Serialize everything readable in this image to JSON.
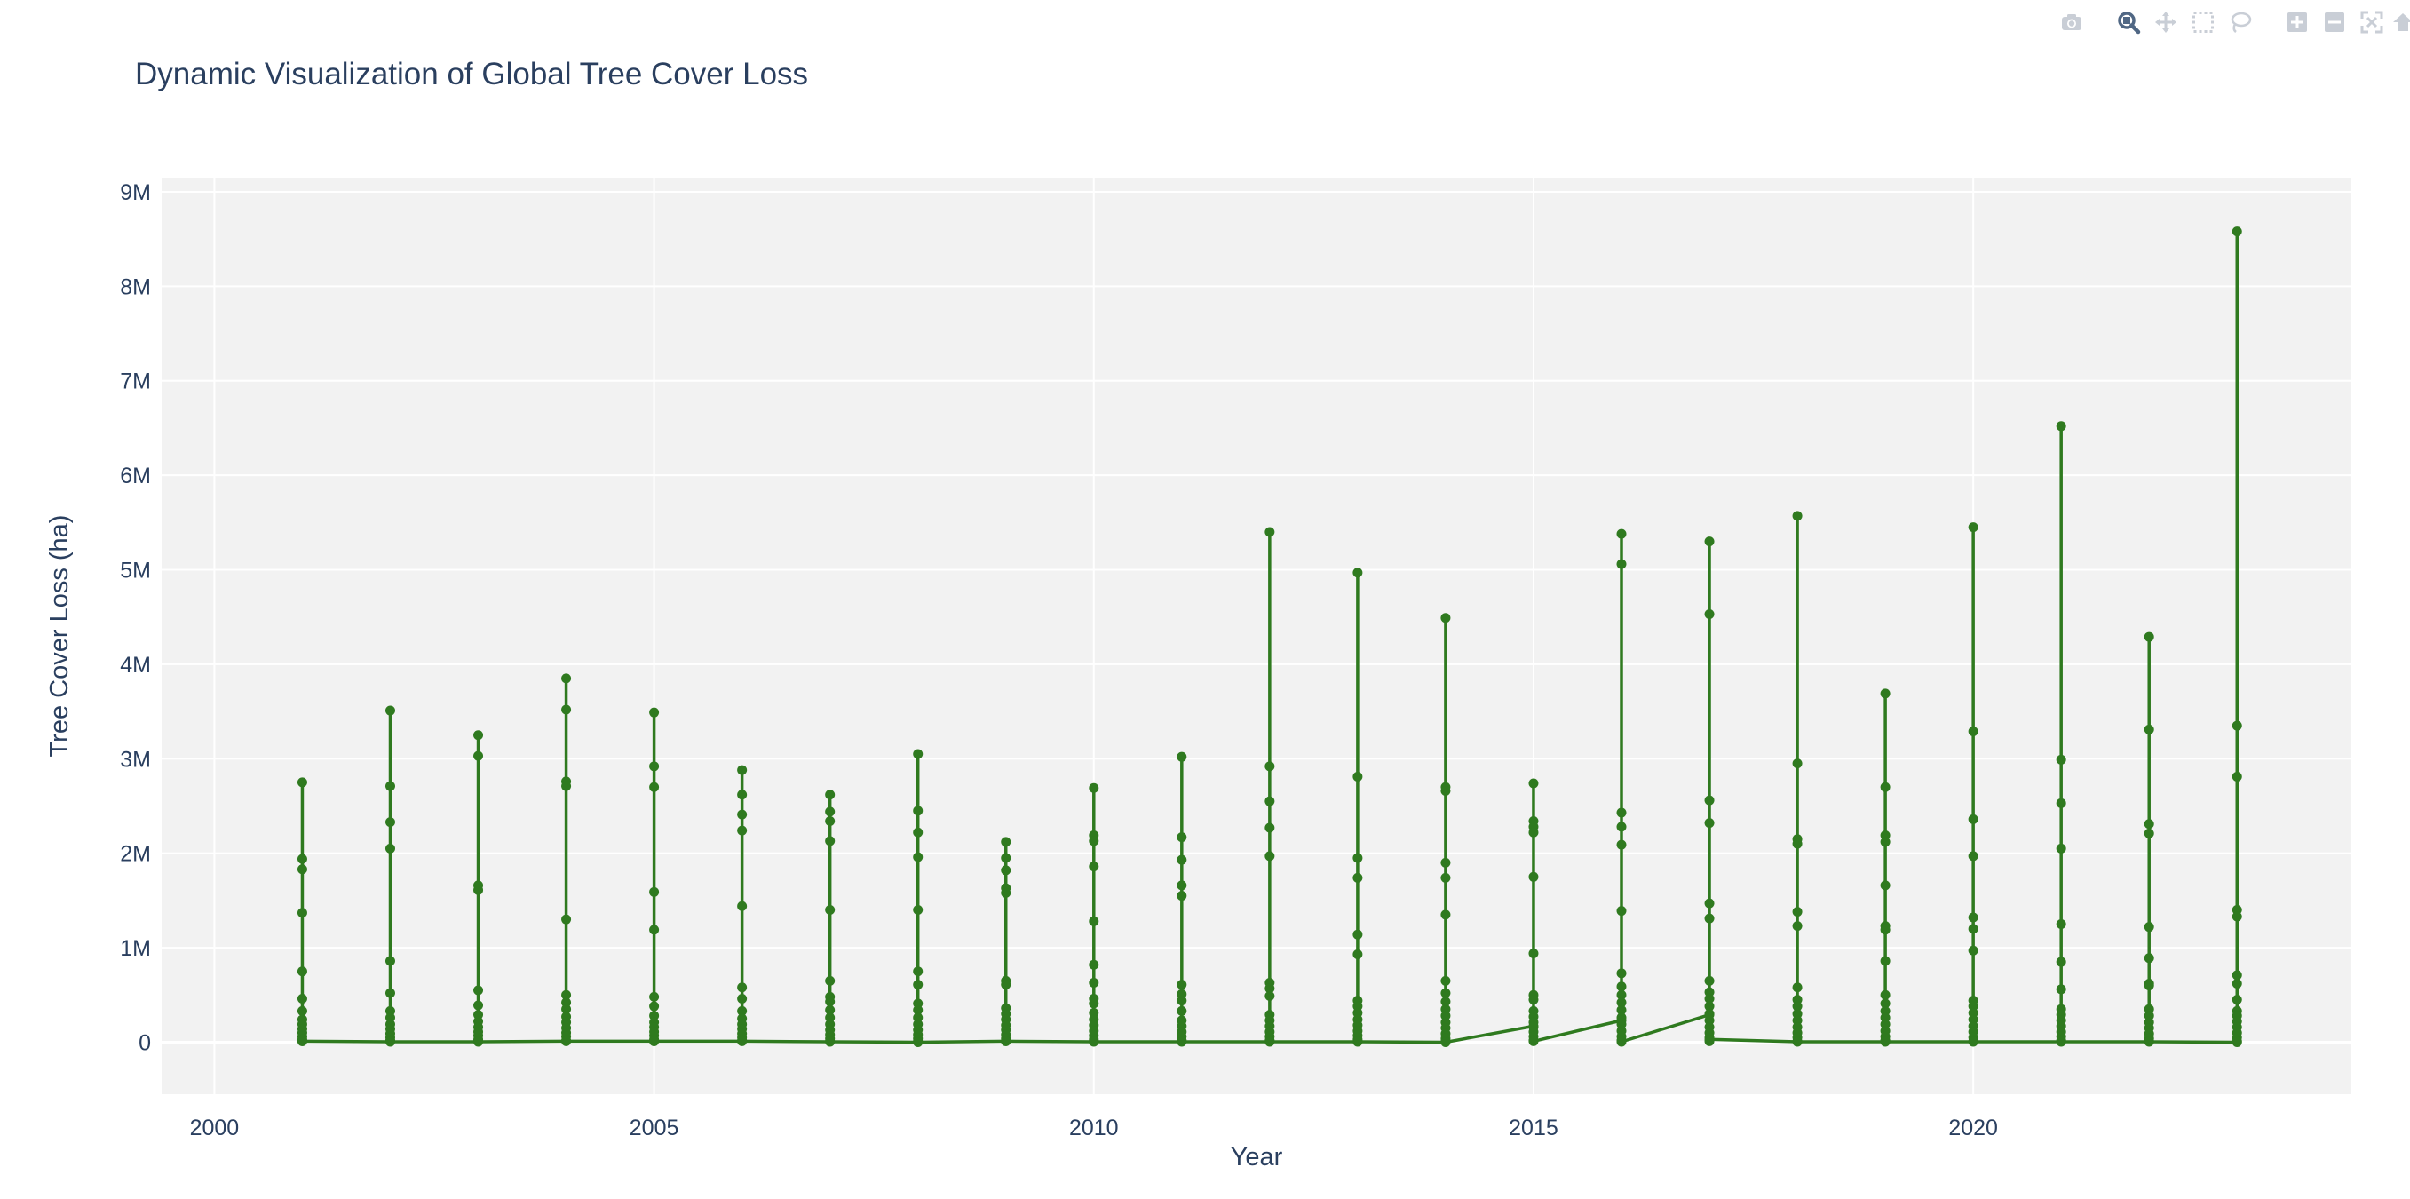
{
  "modebar": {
    "buttons": [
      "camera-icon",
      "zoom-icon",
      "pan-icon",
      "box-select-icon",
      "lasso-icon",
      "zoom-in-icon",
      "zoom-out-icon",
      "autoscale-icon",
      "reset-axes-icon"
    ]
  },
  "chart_data": {
    "type": "line",
    "title": "Dynamic Visualization of Global Tree Cover Loss",
    "xlabel": "Year",
    "ylabel": "Tree Cover Loss (ha)",
    "xlim": [
      1999.4,
      2024.3
    ],
    "ylim": [
      -550000,
      9150000
    ],
    "x_ticks": [
      2000,
      2005,
      2010,
      2015,
      2020
    ],
    "x_tick_labels": [
      "2000",
      "2005",
      "2010",
      "2015",
      "2020"
    ],
    "y_ticks": [
      0,
      1000000,
      2000000,
      3000000,
      4000000,
      5000000,
      6000000,
      7000000,
      8000000,
      9000000
    ],
    "y_tick_labels": [
      "0",
      "1M",
      "2M",
      "3M",
      "4M",
      "5M",
      "6M",
      "7M",
      "8M",
      "9M"
    ],
    "grid": true,
    "line_color": "#2f7a1f",
    "plot_bg": "#f2f2f2",
    "series_by_year": [
      {
        "year": 2001,
        "values": [
          2750000,
          1940000,
          1830000,
          1370000,
          750000,
          460000,
          330000,
          240000,
          190000,
          140000,
          100000,
          60000,
          30000,
          10000
        ]
      },
      {
        "year": 2002,
        "values": [
          3510000,
          2710000,
          2330000,
          2050000,
          860000,
          520000,
          330000,
          260000,
          190000,
          140000,
          90000,
          50000,
          20000,
          10000
        ]
      },
      {
        "year": 2003,
        "values": [
          3250000,
          3030000,
          1660000,
          1610000,
          550000,
          390000,
          290000,
          220000,
          160000,
          110000,
          70000,
          30000,
          10000
        ]
      },
      {
        "year": 2004,
        "values": [
          3850000,
          3520000,
          2760000,
          2710000,
          1300000,
          500000,
          420000,
          350000,
          270000,
          210000,
          150000,
          100000,
          60000,
          20000
        ]
      },
      {
        "year": 2005,
        "values": [
          3490000,
          2920000,
          2700000,
          1590000,
          1190000,
          480000,
          380000,
          280000,
          210000,
          160000,
          110000,
          70000,
          30000,
          10000
        ]
      },
      {
        "year": 2006,
        "values": [
          2880000,
          2620000,
          2410000,
          2240000,
          1440000,
          580000,
          460000,
          330000,
          250000,
          190000,
          140000,
          90000,
          50000,
          20000
        ]
      },
      {
        "year": 2007,
        "values": [
          2620000,
          2440000,
          2340000,
          2130000,
          1400000,
          650000,
          480000,
          430000,
          340000,
          260000,
          190000,
          130000,
          80000,
          40000,
          10000
        ]
      },
      {
        "year": 2008,
        "values": [
          3050000,
          2450000,
          2220000,
          1960000,
          1400000,
          750000,
          610000,
          410000,
          340000,
          260000,
          190000,
          130000,
          80000,
          40000,
          10000
        ]
      },
      {
        "year": 2009,
        "values": [
          2120000,
          1950000,
          1820000,
          1630000,
          1580000,
          650000,
          610000,
          360000,
          300000,
          240000,
          180000,
          130000,
          80000,
          40000,
          10000
        ]
      },
      {
        "year": 2010,
        "values": [
          2690000,
          2190000,
          2130000,
          1860000,
          1280000,
          820000,
          630000,
          460000,
          410000,
          310000,
          240000,
          180000,
          120000,
          70000,
          30000,
          10000
        ]
      },
      {
        "year": 2011,
        "values": [
          3020000,
          2170000,
          1930000,
          1660000,
          1550000,
          610000,
          510000,
          440000,
          330000,
          230000,
          170000,
          110000,
          60000,
          20000
        ]
      },
      {
        "year": 2012,
        "values": [
          5400000,
          2920000,
          2550000,
          2270000,
          1970000,
          630000,
          570000,
          490000,
          290000,
          230000,
          170000,
          110000,
          60000,
          20000
        ]
      },
      {
        "year": 2013,
        "values": [
          4970000,
          2810000,
          1950000,
          1740000,
          1140000,
          930000,
          440000,
          380000,
          310000,
          240000,
          180000,
          120000,
          70000,
          30000,
          10000
        ]
      },
      {
        "year": 2014,
        "values": [
          4490000,
          2700000,
          2660000,
          1900000,
          1740000,
          1350000,
          650000,
          520000,
          430000,
          350000,
          280000,
          210000,
          150000,
          90000,
          40000,
          10000
        ]
      },
      {
        "year": 2015,
        "values": [
          2740000,
          2340000,
          2280000,
          2220000,
          1750000,
          940000,
          500000,
          450000,
          330000,
          270000,
          210000,
          160000,
          110000,
          60000,
          20000
        ]
      },
      {
        "year": 2016,
        "values": [
          5380000,
          5060000,
          2430000,
          2280000,
          2090000,
          1390000,
          730000,
          590000,
          500000,
          420000,
          340000,
          260000,
          190000,
          120000,
          60000,
          20000
        ]
      },
      {
        "year": 2017,
        "values": [
          5300000,
          4530000,
          2560000,
          2320000,
          1470000,
          1310000,
          650000,
          530000,
          460000,
          380000,
          300000,
          230000,
          160000,
          100000,
          50000,
          10000
        ]
      },
      {
        "year": 2018,
        "values": [
          5570000,
          2950000,
          2150000,
          2100000,
          1380000,
          1230000,
          580000,
          450000,
          380000,
          300000,
          230000,
          160000,
          100000,
          50000,
          10000
        ]
      },
      {
        "year": 2019,
        "values": [
          3690000,
          2700000,
          2190000,
          2120000,
          1660000,
          1230000,
          1190000,
          860000,
          500000,
          410000,
          330000,
          260000,
          190000,
          120000,
          60000,
          20000
        ]
      },
      {
        "year": 2020,
        "values": [
          5450000,
          3290000,
          2360000,
          1970000,
          1320000,
          1200000,
          970000,
          440000,
          380000,
          310000,
          240000,
          170000,
          110000,
          50000,
          10000
        ]
      },
      {
        "year": 2021,
        "values": [
          6520000,
          2990000,
          2530000,
          2050000,
          1250000,
          850000,
          560000,
          350000,
          290000,
          230000,
          170000,
          110000,
          60000,
          20000
        ]
      },
      {
        "year": 2022,
        "values": [
          4290000,
          3310000,
          2310000,
          2210000,
          1220000,
          890000,
          620000,
          600000,
          350000,
          280000,
          210000,
          150000,
          90000,
          40000,
          10000
        ]
      },
      {
        "year": 2023,
        "values": [
          8580000,
          3350000,
          2810000,
          1400000,
          1330000,
          710000,
          620000,
          450000,
          330000,
          280000,
          220000,
          160000,
          100000,
          50000,
          10000
        ]
      }
    ],
    "connecting_points": [
      {
        "x": 2001,
        "y": 10000
      },
      {
        "x": 2002,
        "y": 5000
      },
      {
        "x": 2003,
        "y": 5000
      },
      {
        "x": 2004,
        "y": 10000
      },
      {
        "x": 2005,
        "y": 10000
      },
      {
        "x": 2006,
        "y": 10000
      },
      {
        "x": 2007,
        "y": 5000
      },
      {
        "x": 2008,
        "y": 0
      },
      {
        "x": 2009,
        "y": 10000
      },
      {
        "x": 2010,
        "y": 5000
      },
      {
        "x": 2011,
        "y": 5000
      },
      {
        "x": 2012,
        "y": 5000
      },
      {
        "x": 2013,
        "y": 5000
      },
      {
        "x": 2014,
        "y": 0
      },
      {
        "x": 2015,
        "y": 170000
      },
      {
        "x": 2015,
        "y": 10000
      },
      {
        "x": 2016,
        "y": 230000
      },
      {
        "x": 2016,
        "y": 5000
      },
      {
        "x": 2017,
        "y": 290000
      },
      {
        "x": 2017,
        "y": 30000
      },
      {
        "x": 2018,
        "y": 5000
      },
      {
        "x": 2019,
        "y": 5000
      },
      {
        "x": 2020,
        "y": 5000
      },
      {
        "x": 2021,
        "y": 5000
      },
      {
        "x": 2022,
        "y": 5000
      },
      {
        "x": 2023,
        "y": 0
      }
    ]
  }
}
